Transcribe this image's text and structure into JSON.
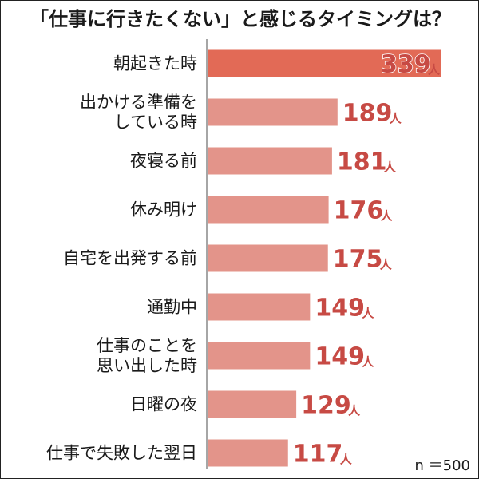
{
  "chart_data": {
    "type": "bar",
    "orientation": "horizontal",
    "title": "「仕事に行きたくない」と感じるタイミングは？",
    "sample_size_label": "n ＝500",
    "unit": "人",
    "categories": [
      [
        "朝起きた時"
      ],
      [
        "出かける準備を",
        "している時"
      ],
      [
        "夜寝る前"
      ],
      [
        "休み明け"
      ],
      [
        "自宅を出発する前"
      ],
      [
        "通勤中"
      ],
      [
        "仕事のことを",
        "思い出した時"
      ],
      [
        "日曜の夜"
      ],
      [
        "仕事で失敗した翌日"
      ]
    ],
    "values": [
      339,
      189,
      181,
      176,
      175,
      149,
      149,
      129,
      117
    ],
    "xlim": [
      0,
      339
    ],
    "grid": false,
    "colors": {
      "highlight_bar": "#e26a56",
      "bar": "#e3948a",
      "value_text": "#c74a44",
      "value_outline": "#ffffff",
      "axis": "#888888",
      "label_text": "#1a1a1a"
    }
  }
}
